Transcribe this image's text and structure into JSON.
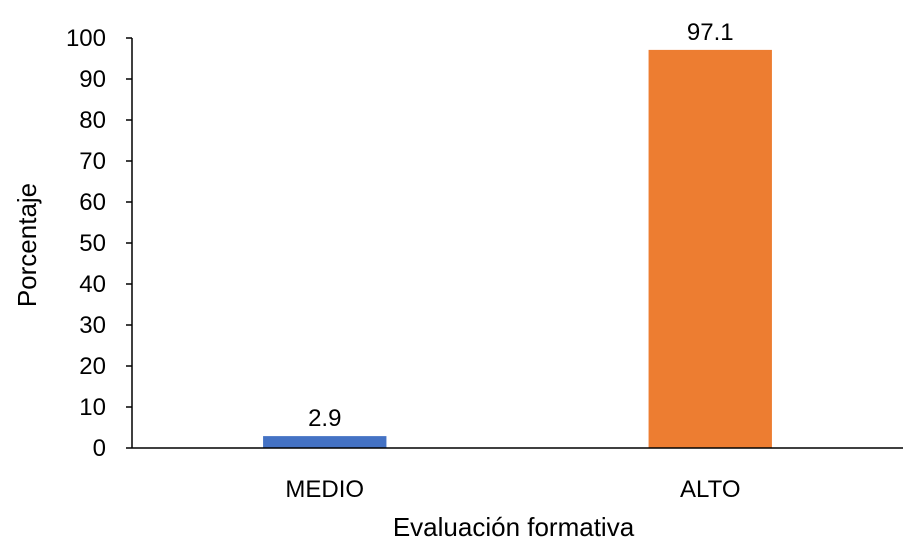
{
  "chart_data": {
    "type": "bar",
    "categories": [
      "MEDIO",
      "ALTO"
    ],
    "values": [
      2.9,
      97.1
    ],
    "value_labels": [
      "2.9",
      "97.1"
    ],
    "bar_colors": [
      "#4472C4",
      "#ED7D31"
    ],
    "xlabel": "Evaluación formativa",
    "ylabel": "Porcentaje",
    "ylim": [
      0,
      100
    ],
    "yticks": [
      0,
      10,
      20,
      30,
      40,
      50,
      60,
      70,
      80,
      90,
      100
    ],
    "grid": false,
    "legend": "none"
  }
}
